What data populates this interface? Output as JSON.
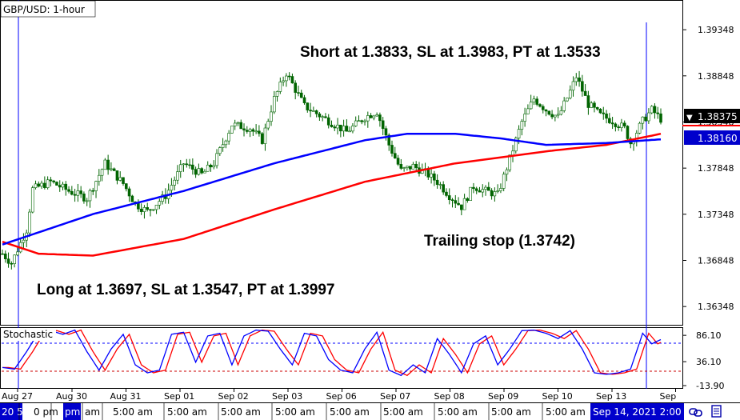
{
  "window": {
    "title": "GBP/USD: 1-hour"
  },
  "colors": {
    "candle": "#006400",
    "ma_blue": "#0000ff",
    "ma_red": "#ff0000",
    "price_box_current": "#000000",
    "price_box_ma": "#0000cc",
    "stoch_k": "#0000ff",
    "stoch_d": "#ff0000",
    "vline": "#0000ff",
    "bottom_bar_highlight": "#0000cc"
  },
  "chart_data": {
    "type": "line",
    "title": "GBP/USD: 1-hour",
    "price_axis": {
      "ticks": [
        "1.39348",
        "1.38848",
        "1.38348",
        "1.37848",
        "1.37348",
        "1.36848",
        "1.36348"
      ],
      "ylim": [
        1.3615,
        1.3967
      ]
    },
    "current_price_label": "1.38375",
    "ma_price_label": "1.38160",
    "x_labels": [
      "Aug 27",
      "Aug 30",
      "Aug 31",
      "Sep 01",
      "Sep 02",
      "Sep 03",
      "Sep 06",
      "Sep 07",
      "Sep 08",
      "Sep 09",
      "Sep 10",
      "Sep 13",
      "Sep"
    ],
    "price_keypoints": [
      {
        "x": 0,
        "y": 1.3692
      },
      {
        "x": 3,
        "y": 1.3682
      },
      {
        "x": 8,
        "y": 1.3718
      },
      {
        "x": 10,
        "y": 1.3762
      },
      {
        "x": 16,
        "y": 1.377
      },
      {
        "x": 22,
        "y": 1.376
      },
      {
        "x": 28,
        "y": 1.3752
      },
      {
        "x": 34,
        "y": 1.379
      },
      {
        "x": 40,
        "y": 1.3768
      },
      {
        "x": 44,
        "y": 1.3746
      },
      {
        "x": 48,
        "y": 1.3738
      },
      {
        "x": 54,
        "y": 1.3755
      },
      {
        "x": 60,
        "y": 1.379
      },
      {
        "x": 66,
        "y": 1.3778
      },
      {
        "x": 70,
        "y": 1.379
      },
      {
        "x": 76,
        "y": 1.3832
      },
      {
        "x": 82,
        "y": 1.3828
      },
      {
        "x": 86,
        "y": 1.3815
      },
      {
        "x": 90,
        "y": 1.386
      },
      {
        "x": 94,
        "y": 1.3888
      },
      {
        "x": 100,
        "y": 1.3852
      },
      {
        "x": 108,
        "y": 1.3836
      },
      {
        "x": 114,
        "y": 1.3824
      },
      {
        "x": 120,
        "y": 1.384
      },
      {
        "x": 124,
        "y": 1.3846
      },
      {
        "x": 128,
        "y": 1.381
      },
      {
        "x": 132,
        "y": 1.3782
      },
      {
        "x": 136,
        "y": 1.3787
      },
      {
        "x": 140,
        "y": 1.378
      },
      {
        "x": 144,
        "y": 1.377
      },
      {
        "x": 148,
        "y": 1.3755
      },
      {
        "x": 152,
        "y": 1.3743
      },
      {
        "x": 156,
        "y": 1.3765
      },
      {
        "x": 160,
        "y": 1.376
      },
      {
        "x": 164,
        "y": 1.3756
      },
      {
        "x": 168,
        "y": 1.3795
      },
      {
        "x": 172,
        "y": 1.3835
      },
      {
        "x": 176,
        "y": 1.386
      },
      {
        "x": 180,
        "y": 1.3848
      },
      {
        "x": 184,
        "y": 1.384
      },
      {
        "x": 188,
        "y": 1.3868
      },
      {
        "x": 190,
        "y": 1.3884
      },
      {
        "x": 194,
        "y": 1.3854
      },
      {
        "x": 198,
        "y": 1.3842
      },
      {
        "x": 202,
        "y": 1.3836
      },
      {
        "x": 206,
        "y": 1.3828
      },
      {
        "x": 208,
        "y": 1.3812
      },
      {
        "x": 212,
        "y": 1.3836
      },
      {
        "x": 215,
        "y": 1.3848
      },
      {
        "x": 218,
        "y": 1.3838
      }
    ],
    "ma_blue_keypoints": [
      {
        "x": 0,
        "y": 1.3702
      },
      {
        "x": 30,
        "y": 1.3735
      },
      {
        "x": 60,
        "y": 1.376
      },
      {
        "x": 90,
        "y": 1.379
      },
      {
        "x": 120,
        "y": 1.3815
      },
      {
        "x": 134,
        "y": 1.3822
      },
      {
        "x": 150,
        "y": 1.3822
      },
      {
        "x": 165,
        "y": 1.3817
      },
      {
        "x": 180,
        "y": 1.381
      },
      {
        "x": 200,
        "y": 1.3812
      },
      {
        "x": 218,
        "y": 1.3816
      }
    ],
    "ma_red_keypoints": [
      {
        "x": 0,
        "y": 1.3705
      },
      {
        "x": 12,
        "y": 1.3692
      },
      {
        "x": 30,
        "y": 1.369
      },
      {
        "x": 60,
        "y": 1.3708
      },
      {
        "x": 90,
        "y": 1.374
      },
      {
        "x": 120,
        "y": 1.377
      },
      {
        "x": 150,
        "y": 1.379
      },
      {
        "x": 180,
        "y": 1.3803
      },
      {
        "x": 200,
        "y": 1.381
      },
      {
        "x": 218,
        "y": 1.3822
      }
    ],
    "stochastic": {
      "label": "Stochastic",
      "ticks": [
        "86.10",
        "36.10",
        "-13.90"
      ],
      "upper_level": 80,
      "lower_level": 20,
      "ylim": [
        -13.9,
        100
      ],
      "k_keypoints": [
        {
          "x": 0,
          "y": 25
        },
        {
          "x": 4,
          "y": 22
        },
        {
          "x": 8,
          "y": 55
        },
        {
          "x": 12,
          "y": 92
        },
        {
          "x": 16,
          "y": 95
        },
        {
          "x": 20,
          "y": 88
        },
        {
          "x": 24,
          "y": 96
        },
        {
          "x": 28,
          "y": 55
        },
        {
          "x": 32,
          "y": 20
        },
        {
          "x": 36,
          "y": 60
        },
        {
          "x": 40,
          "y": 88
        },
        {
          "x": 44,
          "y": 30
        },
        {
          "x": 48,
          "y": 15
        },
        {
          "x": 52,
          "y": 20
        },
        {
          "x": 56,
          "y": 88
        },
        {
          "x": 60,
          "y": 92
        },
        {
          "x": 64,
          "y": 35
        },
        {
          "x": 68,
          "y": 85
        },
        {
          "x": 72,
          "y": 90
        },
        {
          "x": 76,
          "y": 30
        },
        {
          "x": 80,
          "y": 85
        },
        {
          "x": 84,
          "y": 96
        },
        {
          "x": 88,
          "y": 94
        },
        {
          "x": 92,
          "y": 60
        },
        {
          "x": 96,
          "y": 30
        },
        {
          "x": 100,
          "y": 90
        },
        {
          "x": 104,
          "y": 85
        },
        {
          "x": 108,
          "y": 40
        },
        {
          "x": 112,
          "y": 20
        },
        {
          "x": 116,
          "y": 15
        },
        {
          "x": 120,
          "y": 60
        },
        {
          "x": 124,
          "y": 92
        },
        {
          "x": 128,
          "y": 20
        },
        {
          "x": 132,
          "y": 10
        },
        {
          "x": 136,
          "y": 30
        },
        {
          "x": 140,
          "y": 15
        },
        {
          "x": 144,
          "y": 80
        },
        {
          "x": 148,
          "y": 50
        },
        {
          "x": 152,
          "y": 15
        },
        {
          "x": 156,
          "y": 70
        },
        {
          "x": 160,
          "y": 85
        },
        {
          "x": 164,
          "y": 30
        },
        {
          "x": 168,
          "y": 60
        },
        {
          "x": 172,
          "y": 95
        },
        {
          "x": 176,
          "y": 96
        },
        {
          "x": 180,
          "y": 90
        },
        {
          "x": 184,
          "y": 80
        },
        {
          "x": 188,
          "y": 95
        },
        {
          "x": 192,
          "y": 60
        },
        {
          "x": 196,
          "y": 15
        },
        {
          "x": 200,
          "y": 12
        },
        {
          "x": 204,
          "y": 15
        },
        {
          "x": 208,
          "y": 22
        },
        {
          "x": 212,
          "y": 90
        },
        {
          "x": 215,
          "y": 70
        },
        {
          "x": 218,
          "y": 78
        }
      ]
    }
  },
  "annotations": {
    "short": "Short at 1.3833, SL at 1.3983, PT at 1.3533",
    "long": "Long at 1.3697, SL at 1.3547, PT at 1.3997",
    "trailing": "Trailing stop (1.3742)"
  },
  "bottom_bar": {
    "items": [
      "20 5",
      "0 pm",
      "pm",
      "am",
      "5:00 am",
      "5:00 am",
      "5:00 am",
      "5:00 am",
      "5:00 am",
      "5:00 am",
      "5:00 am",
      "5:00 am",
      "5:00 am"
    ],
    "highlight": "Sep 14, 2021 2:00",
    "icons": [
      "link-icon",
      "document-icon"
    ]
  }
}
